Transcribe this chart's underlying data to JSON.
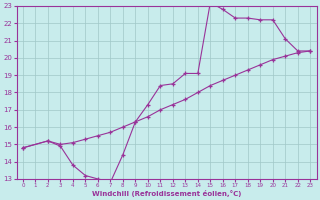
{
  "xlabel": "Windchill (Refroidissement éolien,°C)",
  "xlim": [
    -0.5,
    23.5
  ],
  "ylim": [
    13,
    23
  ],
  "xticks": [
    0,
    1,
    2,
    3,
    4,
    5,
    6,
    7,
    8,
    9,
    10,
    11,
    12,
    13,
    14,
    15,
    16,
    17,
    18,
    19,
    20,
    21,
    22,
    23
  ],
  "yticks": [
    13,
    14,
    15,
    16,
    17,
    18,
    19,
    20,
    21,
    22,
    23
  ],
  "bg_color": "#c8ecec",
  "grid_color": "#a0c8c8",
  "line_color": "#993399",
  "line1_x": [
    0,
    2,
    3,
    4,
    5,
    6,
    7,
    8,
    9,
    10,
    11,
    12,
    13,
    14,
    15,
    16,
    17,
    18,
    19,
    20,
    21,
    22,
    23
  ],
  "line1_y": [
    14.8,
    15.2,
    14.9,
    13.8,
    13.2,
    13.0,
    12.8,
    14.4,
    16.3,
    17.3,
    18.4,
    18.5,
    19.1,
    19.1,
    23.2,
    22.8,
    22.3,
    22.3,
    22.2,
    22.2,
    21.1,
    20.4,
    20.4
  ],
  "line2_x": [
    0,
    2,
    3,
    4,
    5,
    6,
    7,
    8,
    9,
    10,
    11,
    12,
    13,
    14,
    15,
    16,
    17,
    18,
    19,
    20,
    21,
    22,
    23
  ],
  "line2_y": [
    14.8,
    15.2,
    15.0,
    15.1,
    15.3,
    15.5,
    15.7,
    16.0,
    16.3,
    16.6,
    17.0,
    17.3,
    17.6,
    18.0,
    18.4,
    18.7,
    19.0,
    19.3,
    19.6,
    19.9,
    20.1,
    20.3,
    20.4
  ]
}
